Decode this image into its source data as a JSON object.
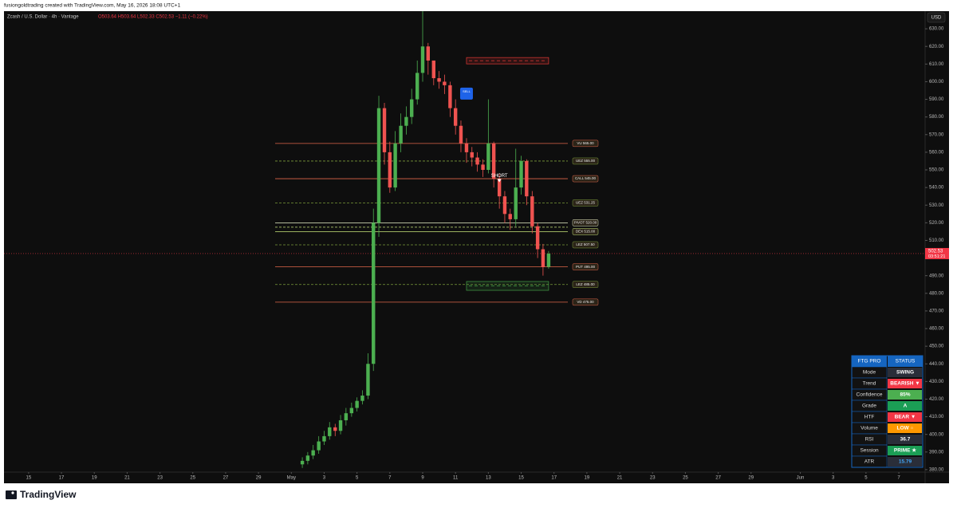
{
  "header": {
    "text": "fusiongoldtrading created with TradingView.com, May 16, 2026 18:08 UTC+1"
  },
  "footer": {
    "logo_text": "TradingView"
  },
  "chart_data": {
    "type": "candlestick",
    "legend": {
      "symbol": "Zcash / U.S. Dollar · 4h · Vantage",
      "ohlc": "O503.64 H503.64 L502.33 C502.53 −1.11 (−0.22%)"
    },
    "currency": "USD",
    "x": [
      16.67,
      17,
      17.33,
      17.67,
      18,
      18.33,
      18.67,
      19,
      19.33,
      19.67,
      20,
      20.33,
      20.67,
      21,
      21.33,
      21.67,
      22,
      22.33,
      22.67,
      23,
      23.33,
      23.67,
      24,
      24.33,
      24.67,
      25,
      25.33,
      25.67,
      26,
      26.33,
      26.67,
      27,
      27.33,
      27.67,
      28,
      28.33,
      28.67,
      29,
      29.33,
      29.67,
      30,
      30.33,
      30.67,
      31,
      31.33,
      31.67
    ],
    "open": [
      383,
      385,
      388,
      391,
      396,
      399,
      404,
      402,
      408,
      412,
      415,
      419,
      422,
      440,
      520,
      585,
      560,
      540,
      565,
      575,
      580,
      590,
      605,
      620,
      612,
      602,
      600,
      598,
      585,
      575,
      565,
      560,
      557,
      553,
      550,
      565,
      545,
      535,
      525,
      522,
      540,
      555,
      535,
      518,
      505,
      495
    ],
    "high": [
      387,
      390,
      394,
      399,
      402,
      407,
      406,
      411,
      415,
      418,
      421,
      425,
      446,
      528,
      592,
      588,
      566,
      572,
      582,
      586,
      596,
      612,
      640,
      622,
      610,
      606,
      604,
      600,
      590,
      578,
      568,
      563,
      560,
      556,
      590,
      566,
      548,
      538,
      528,
      562,
      558,
      556,
      538,
      520,
      508,
      504
    ],
    "low": [
      381,
      383,
      386,
      389,
      394,
      397,
      399,
      400,
      405,
      410,
      413,
      417,
      420,
      436,
      512,
      553,
      537,
      538,
      560,
      570,
      576,
      587,
      600,
      604,
      598,
      596,
      593,
      580,
      570,
      560,
      554,
      552,
      549,
      546,
      548,
      540,
      528,
      520,
      516,
      518,
      536,
      530,
      514,
      500,
      490,
      494
    ],
    "close": [
      385,
      388,
      391,
      396,
      399,
      404,
      402,
      408,
      412,
      415,
      419,
      422,
      440,
      520,
      585,
      560,
      540,
      565,
      575,
      580,
      590,
      605,
      620,
      612,
      602,
      600,
      598,
      585,
      575,
      565,
      560,
      557,
      553,
      550,
      565,
      545,
      535,
      525,
      522,
      540,
      555,
      535,
      518,
      505,
      495,
      502.53
    ],
    "up_color": "#4caf50",
    "down_color": "#ef5350",
    "xlim": [
      -1.5,
      54.6
    ],
    "xticks": [
      {
        "value": 0,
        "label": "15"
      },
      {
        "value": 2,
        "label": "17"
      },
      {
        "value": 4,
        "label": "19"
      },
      {
        "value": 6,
        "label": "21"
      },
      {
        "value": 8,
        "label": "23"
      },
      {
        "value": 10,
        "label": "25"
      },
      {
        "value": 12,
        "label": "27"
      },
      {
        "value": 14,
        "label": "29"
      },
      {
        "value": 16,
        "label": "May"
      },
      {
        "value": 18,
        "label": "3"
      },
      {
        "value": 20,
        "label": "5"
      },
      {
        "value": 22,
        "label": "7"
      },
      {
        "value": 24,
        "label": "9"
      },
      {
        "value": 26,
        "label": "11"
      },
      {
        "value": 28,
        "label": "13"
      },
      {
        "value": 30,
        "label": "15"
      },
      {
        "value": 32,
        "label": "17"
      },
      {
        "value": 34,
        "label": "19"
      },
      {
        "value": 36,
        "label": "21"
      },
      {
        "value": 38,
        "label": "23"
      },
      {
        "value": 40,
        "label": "25"
      },
      {
        "value": 42,
        "label": "27"
      },
      {
        "value": 44,
        "label": "29"
      },
      {
        "value": 47,
        "label": "Jun"
      },
      {
        "value": 49,
        "label": "3"
      },
      {
        "value": 51,
        "label": "5"
      },
      {
        "value": 53,
        "label": "7"
      }
    ],
    "ylim": [
      378.6,
      640
    ],
    "yticks": [
      {
        "value": 380,
        "label": "380.00"
      },
      {
        "value": 390,
        "label": "390.00"
      },
      {
        "value": 400,
        "label": "400.00"
      },
      {
        "value": 410,
        "label": "410.00"
      },
      {
        "value": 420,
        "label": "420.00"
      },
      {
        "value": 430,
        "label": "430.00"
      },
      {
        "value": 440,
        "label": "440.00"
      },
      {
        "value": 450,
        "label": "450.00"
      },
      {
        "value": 460,
        "label": "460.00"
      },
      {
        "value": 470,
        "label": "470.00"
      },
      {
        "value": 480,
        "label": "480.00"
      },
      {
        "value": 490,
        "label": "490.00"
      },
      {
        "value": 500,
        "label": "500.00"
      },
      {
        "value": 510,
        "label": "510.00"
      },
      {
        "value": 520,
        "label": "520.00"
      },
      {
        "value": 530,
        "label": "530.00"
      },
      {
        "value": 540,
        "label": "540.00"
      },
      {
        "value": 550,
        "label": "550.00"
      },
      {
        "value": 560,
        "label": "560.00"
      },
      {
        "value": 570,
        "label": "570.00"
      },
      {
        "value": 580,
        "label": "580.00"
      },
      {
        "value": 590,
        "label": "590.00"
      },
      {
        "value": 600,
        "label": "600.00"
      },
      {
        "value": 610,
        "label": "610.00"
      },
      {
        "value": 620,
        "label": "620.00"
      },
      {
        "value": 630,
        "label": "630.00"
      }
    ],
    "last_price": 502.53,
    "countdown": "03:51:21",
    "last_color": "#f23645",
    "levels": [
      {
        "label": "VU 565.00",
        "value": 565,
        "color": "#e0664a",
        "dashed": false
      },
      {
        "label": "UEZ 555.00",
        "value": 555,
        "color": "#7a9a3a",
        "dashed": true
      },
      {
        "label": "CALL 545.00",
        "value": 545,
        "color": "#e0664a",
        "dashed": false
      },
      {
        "label": "UEZ 531.25",
        "value": 531.25,
        "color": "#7a9a3a",
        "dashed": true
      },
      {
        "label": "PIVOT 520.00",
        "value": 520,
        "color": "#e8f0c8",
        "dashed": false
      },
      {
        "label": null,
        "value": 517.5,
        "color": "#c8e67a",
        "dashed": true
      },
      {
        "label": "DEX 515.00",
        "value": 515,
        "color": "#c8e67a",
        "dashed": false
      },
      {
        "label": "LEZ 507.50",
        "value": 507.5,
        "color": "#7a9a3a",
        "dashed": true
      },
      {
        "label": "PUT 495.00",
        "value": 495,
        "color": "#e0664a",
        "dashed": false
      },
      {
        "label": "LEZ 485.00",
        "value": 485,
        "color": "#7a9a3a",
        "dashed": true
      },
      {
        "label": "VD 475.00",
        "value": 475,
        "color": "#e0664a",
        "dashed": false
      }
    ],
    "zones": [
      {
        "x": [
          26.67,
          31.67
        ],
        "y": [
          610.1,
          613.7
        ],
        "color": "#e53935"
      },
      {
        "x": [
          26.67,
          31.67
        ],
        "y": [
          481.7,
          486.7
        ],
        "color": "#43a047"
      }
    ],
    "annotations": [
      {
        "text": "SELL",
        "x": 26.67,
        "y": 593,
        "color": "#1e63e9"
      },
      {
        "text": "SHORT",
        "x": 28.67,
        "y": 543,
        "color": "#ffffff"
      }
    ],
    "table": {
      "header": [
        "FTG PRO",
        "STATUS"
      ],
      "rows": [
        [
          "Mode",
          "SWING"
        ],
        [
          "Trend",
          "BEARISH ▼"
        ],
        [
          "Confidence",
          "85%"
        ],
        [
          "Grade",
          "A"
        ],
        [
          "HTF",
          "BEAR ▼"
        ],
        [
          "Volume",
          "LOW ○"
        ],
        [
          "RSI",
          "36.7"
        ],
        [
          "Session",
          "PRIME ★"
        ],
        [
          "ATR",
          "15.79"
        ]
      ],
      "styles": [
        {
          "bg": "#2a2e39",
          "fg": "#ffffff"
        },
        {
          "bg": "#f23645",
          "fg": "#ffffff"
        },
        {
          "bg": "#4caf50",
          "fg": "#ffffff"
        },
        {
          "bg": "#1b9e55",
          "fg": "#ffffff"
        },
        {
          "bg": "#f23645",
          "fg": "#ffffff"
        },
        {
          "bg": "#ff9800",
          "fg": "#ffffff"
        },
        {
          "bg": "#2a2e39",
          "fg": "#ffffff"
        },
        {
          "bg": "#1b9e55",
          "fg": "#ffffff"
        },
        {
          "bg": "#2a2e39",
          "fg": "#42a5f5"
        }
      ],
      "header_bg": "#1565c0"
    }
  }
}
